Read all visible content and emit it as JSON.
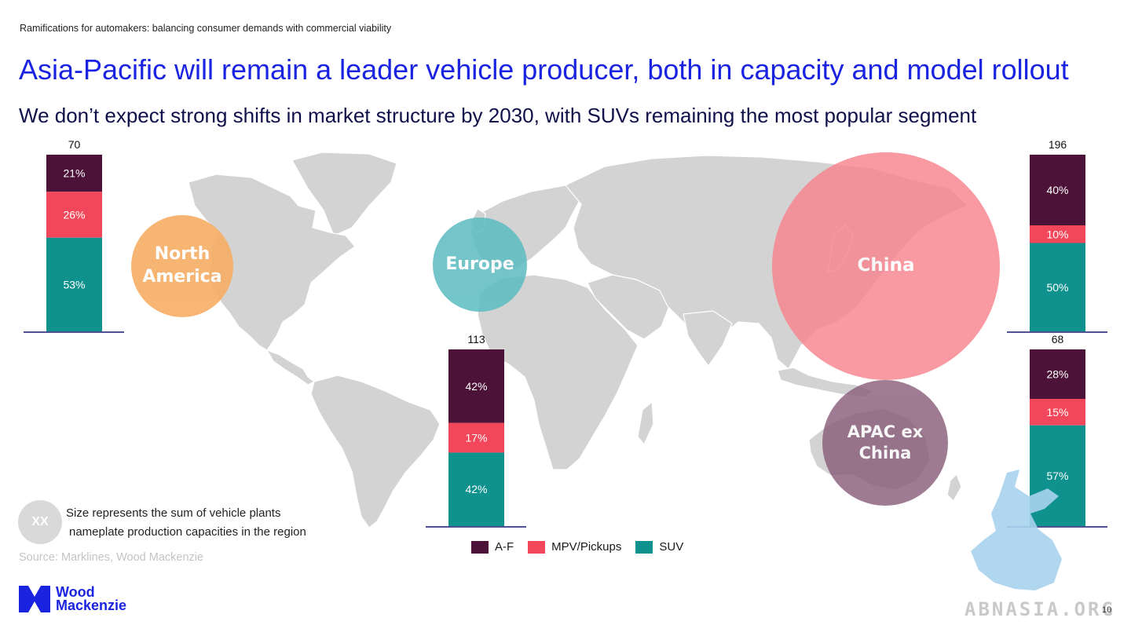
{
  "header": {
    "breadcrumb": "Ramifications for automakers: balancing consumer demands with commercial viability",
    "title": "Asia-Pacific will remain a leader vehicle producer, both in capacity and model rollout",
    "subtitle": "We don’t expect strong shifts in market structure by 2030, with SUVs remaining the most popular segment"
  },
  "colors": {
    "af": "#4d1238",
    "mpv": "#f2475a",
    "suv": "#0f918e",
    "north_america_bubble": "#f7ae66",
    "europe_bubble": "#5bbcc0",
    "china_bubble": "#f8848f",
    "apac_bubble": "#8b5f7c",
    "map_land": "#d3d3d3",
    "title_blue": "#1a23e0"
  },
  "bubbles": [
    {
      "id": "north-america",
      "label": "North\nAmerica"
    },
    {
      "id": "europe",
      "label": "Europe"
    },
    {
      "id": "china",
      "label": "China"
    },
    {
      "id": "apac-ex-china",
      "label": "APAC ex\nChina"
    }
  ],
  "chart_data": [
    {
      "type": "bar",
      "region": "North America",
      "total": 70,
      "total_label": "70",
      "series": [
        {
          "name": "A-F",
          "value": 21,
          "label": "21%"
        },
        {
          "name": "MPV/Pickups",
          "value": 26,
          "label": "26%"
        },
        {
          "name": "SUV",
          "value": 53,
          "label": "53%"
        }
      ]
    },
    {
      "type": "bar",
      "region": "Europe",
      "total": 113,
      "total_label": "113",
      "series": [
        {
          "name": "A-F",
          "value": 42,
          "label": "42%"
        },
        {
          "name": "MPV/Pickups",
          "value": 17,
          "label": "17%"
        },
        {
          "name": "SUV",
          "value": 42,
          "label": "42%"
        }
      ]
    },
    {
      "type": "bar",
      "region": "China",
      "total": 196,
      "total_label": "196",
      "series": [
        {
          "name": "A-F",
          "value": 40,
          "label": "40%"
        },
        {
          "name": "MPV/Pickups",
          "value": 10,
          "label": "10%"
        },
        {
          "name": "SUV",
          "value": 50,
          "label": "50%"
        }
      ]
    },
    {
      "type": "bar",
      "region": "APAC ex China",
      "total": 68,
      "total_label": "68",
      "series": [
        {
          "name": "A-F",
          "value": 28,
          "label": "28%"
        },
        {
          "name": "MPV/Pickups",
          "value": 15,
          "label": "15%"
        },
        {
          "name": "SUV",
          "value": 57,
          "label": "57%"
        }
      ]
    }
  ],
  "legend": [
    {
      "label": "A-F",
      "color": "#4d1238"
    },
    {
      "label": "MPV/Pickups",
      "color": "#f2475a"
    },
    {
      "label": "SUV",
      "color": "#0f918e"
    }
  ],
  "footer": {
    "size_key": "XX",
    "size_note_line1": "Size represents the sum of vehicle plants",
    "size_note_line2": "nameplate production capacities in the region",
    "source": "Source: Marklines, Wood Mackenzie",
    "logo_line1": "Wood",
    "logo_line2": "Mackenzie",
    "watermark": "ABNASIA.ORG",
    "page_number": "10"
  }
}
